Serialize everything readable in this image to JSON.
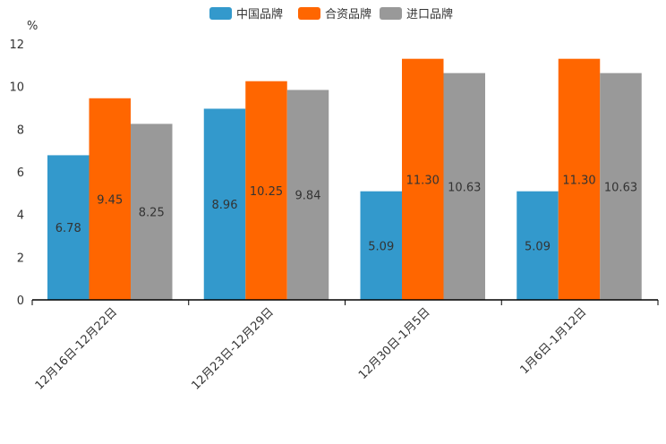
{
  "chart_data": {
    "type": "bar",
    "title": "",
    "ylabel": "%",
    "xlabel": "",
    "ylim": [
      0,
      12
    ],
    "yticks": [
      0,
      2,
      4,
      6,
      8,
      10,
      12
    ],
    "categories": [
      "12月16日-12月22日",
      "12月23日-12月29日",
      "12月30日-1月5日",
      "1月6日-1月12日"
    ],
    "series": [
      {
        "name": "中国品牌",
        "color": "#3399cc",
        "values": [
          6.78,
          8.96,
          5.09,
          5.09
        ],
        "labels": [
          "6.78",
          "8.96",
          "5.09",
          "5.09"
        ]
      },
      {
        "name": "合资品牌",
        "color": "#ff6600",
        "values": [
          9.45,
          10.25,
          11.3,
          11.3
        ],
        "labels": [
          "9.45",
          "10.25",
          "11.30",
          "11.30"
        ]
      },
      {
        "name": "进口品牌",
        "color": "#999999",
        "values": [
          8.25,
          9.84,
          10.63,
          10.63
        ],
        "labels": [
          "8.25",
          "9.84",
          "10.63",
          "10.63"
        ]
      }
    ],
    "legend_position": "top-center",
    "grid": false
  }
}
